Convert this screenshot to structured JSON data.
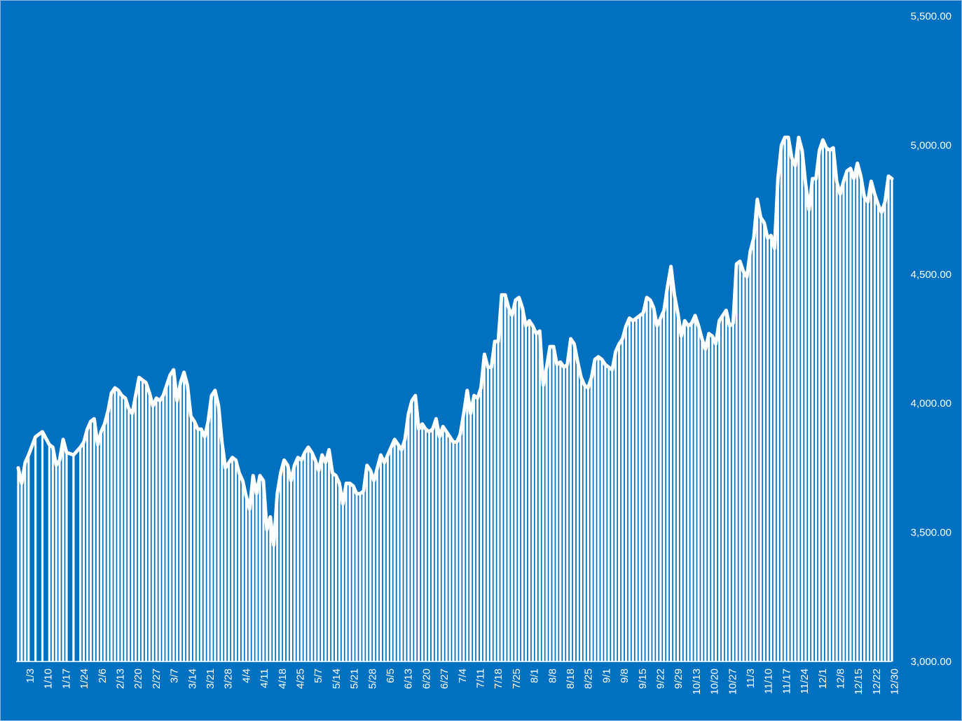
{
  "chart_data": {
    "type": "area",
    "title": "",
    "xlabel": "",
    "ylabel": "",
    "ylim": [
      3000,
      5500
    ],
    "y_ticks": [
      3000,
      3500,
      4000,
      4500,
      5000,
      5500
    ],
    "y_tick_labels": [
      "3,000.00",
      "3,500.00",
      "4,000.00",
      "4,500.00",
      "5,000.00",
      "5,500.00"
    ],
    "y_axis_side": "right",
    "grid": false,
    "legend": "none",
    "x_tick_labels": [
      "1/3",
      "1/10",
      "1/17",
      "1/24",
      "2/6",
      "2/13",
      "2/20",
      "2/27",
      "3/7",
      "3/14",
      "3/21",
      "3/28",
      "4/4",
      "4/11",
      "4/18",
      "4/25",
      "5/7",
      "5/14",
      "5/21",
      "5/28",
      "6/5",
      "6/13",
      "6/20",
      "6/27",
      "7/4",
      "7/11",
      "7/18",
      "7/25",
      "8/1",
      "8/8",
      "8/18",
      "8/25",
      "9/1",
      "9/8",
      "9/15",
      "9/22",
      "9/29",
      "10/13",
      "10/20",
      "10/27",
      "11/3",
      "11/10",
      "11/17",
      "11/24",
      "12/1",
      "12/8",
      "12/15",
      "12/22",
      "12/30"
    ],
    "anchors": [
      [
        0,
        3750
      ],
      [
        1,
        3690
      ],
      [
        2,
        3770
      ],
      [
        3,
        3800
      ],
      [
        5,
        3870
      ],
      [
        7,
        3890
      ],
      [
        9,
        3840
      ],
      [
        10,
        3830
      ],
      [
        11,
        3760
      ],
      [
        12,
        3780
      ],
      [
        13,
        3860
      ],
      [
        14,
        3810
      ],
      [
        16,
        3800
      ],
      [
        18,
        3830
      ],
      [
        19,
        3850
      ],
      [
        20,
        3900
      ],
      [
        21,
        3930
      ],
      [
        22,
        3940
      ],
      [
        23,
        3840
      ],
      [
        24,
        3890
      ],
      [
        25,
        3920
      ],
      [
        26,
        3970
      ],
      [
        27,
        4040
      ],
      [
        28,
        4060
      ],
      [
        29,
        4050
      ],
      [
        30,
        4030
      ],
      [
        31,
        4020
      ],
      [
        32,
        3980
      ],
      [
        33,
        3960
      ],
      [
        34,
        4030
      ],
      [
        35,
        4100
      ],
      [
        36,
        4090
      ],
      [
        37,
        4080
      ],
      [
        38,
        4040
      ],
      [
        39,
        3990
      ],
      [
        40,
        4020
      ],
      [
        41,
        4010
      ],
      [
        42,
        4030
      ],
      [
        43,
        4070
      ],
      [
        44,
        4110
      ],
      [
        45,
        4130
      ],
      [
        46,
        4010
      ],
      [
        47,
        4080
      ],
      [
        48,
        4120
      ],
      [
        49,
        4070
      ],
      [
        50,
        3950
      ],
      [
        51,
        3930
      ],
      [
        52,
        3900
      ],
      [
        53,
        3900
      ],
      [
        54,
        3870
      ],
      [
        55,
        3930
      ],
      [
        56,
        4030
      ],
      [
        57,
        4050
      ],
      [
        58,
        3990
      ],
      [
        59,
        3850
      ],
      [
        60,
        3750
      ],
      [
        61,
        3770
      ],
      [
        62,
        3790
      ],
      [
        63,
        3780
      ],
      [
        64,
        3730
      ],
      [
        65,
        3700
      ],
      [
        66,
        3640
      ],
      [
        67,
        3590
      ],
      [
        68,
        3720
      ],
      [
        69,
        3650
      ],
      [
        70,
        3720
      ],
      [
        71,
        3700
      ],
      [
        72,
        3510
      ],
      [
        73,
        3560
      ],
      [
        74,
        3450
      ],
      [
        75,
        3650
      ],
      [
        76,
        3730
      ],
      [
        77,
        3780
      ],
      [
        78,
        3760
      ],
      [
        79,
        3700
      ],
      [
        80,
        3760
      ],
      [
        81,
        3790
      ],
      [
        82,
        3780
      ],
      [
        83,
        3810
      ],
      [
        84,
        3830
      ],
      [
        85,
        3810
      ],
      [
        86,
        3780
      ],
      [
        87,
        3740
      ],
      [
        88,
        3800
      ],
      [
        89,
        3770
      ],
      [
        90,
        3820
      ],
      [
        91,
        3730
      ],
      [
        92,
        3720
      ],
      [
        93,
        3690
      ],
      [
        94,
        3610
      ],
      [
        95,
        3690
      ],
      [
        96,
        3690
      ],
      [
        97,
        3680
      ],
      [
        98,
        3650
      ],
      [
        99,
        3650
      ],
      [
        100,
        3660
      ],
      [
        101,
        3760
      ],
      [
        102,
        3740
      ],
      [
        103,
        3700
      ],
      [
        104,
        3750
      ],
      [
        105,
        3800
      ],
      [
        106,
        3770
      ],
      [
        107,
        3800
      ],
      [
        108,
        3830
      ],
      [
        109,
        3860
      ],
      [
        110,
        3840
      ],
      [
        111,
        3820
      ],
      [
        112,
        3860
      ],
      [
        113,
        3960
      ],
      [
        114,
        4010
      ],
      [
        115,
        4030
      ],
      [
        116,
        3900
      ],
      [
        117,
        3920
      ],
      [
        118,
        3900
      ],
      [
        119,
        3890
      ],
      [
        120,
        3900
      ],
      [
        121,
        3940
      ],
      [
        122,
        3870
      ],
      [
        123,
        3910
      ],
      [
        124,
        3890
      ],
      [
        125,
        3870
      ],
      [
        126,
        3850
      ],
      [
        127,
        3850
      ],
      [
        128,
        3880
      ],
      [
        129,
        3960
      ],
      [
        130,
        4050
      ],
      [
        131,
        3960
      ],
      [
        132,
        4030
      ],
      [
        133,
        4020
      ],
      [
        134,
        4060
      ],
      [
        135,
        4190
      ],
      [
        136,
        4140
      ],
      [
        137,
        4140
      ],
      [
        138,
        4240
      ],
      [
        139,
        4240
      ],
      [
        140,
        4420
      ],
      [
        141,
        4420
      ],
      [
        142,
        4370
      ],
      [
        143,
        4340
      ],
      [
        144,
        4400
      ],
      [
        145,
        4410
      ],
      [
        146,
        4370
      ],
      [
        147,
        4300
      ],
      [
        148,
        4320
      ],
      [
        149,
        4300
      ],
      [
        150,
        4270
      ],
      [
        151,
        4280
      ],
      [
        152,
        4070
      ],
      [
        153,
        4140
      ],
      [
        154,
        4220
      ],
      [
        155,
        4220
      ],
      [
        156,
        4150
      ],
      [
        157,
        4160
      ],
      [
        158,
        4140
      ],
      [
        159,
        4150
      ],
      [
        160,
        4250
      ],
      [
        161,
        4230
      ],
      [
        162,
        4160
      ],
      [
        163,
        4100
      ],
      [
        164,
        4070
      ],
      [
        165,
        4060
      ],
      [
        166,
        4100
      ],
      [
        167,
        4170
      ],
      [
        168,
        4180
      ],
      [
        169,
        4170
      ],
      [
        170,
        4150
      ],
      [
        171,
        4140
      ],
      [
        172,
        4130
      ],
      [
        173,
        4200
      ],
      [
        174,
        4230
      ],
      [
        175,
        4250
      ],
      [
        176,
        4300
      ],
      [
        177,
        4330
      ],
      [
        178,
        4320
      ],
      [
        179,
        4330
      ],
      [
        180,
        4340
      ],
      [
        181,
        4350
      ],
      [
        182,
        4410
      ],
      [
        183,
        4400
      ],
      [
        184,
        4370
      ],
      [
        185,
        4300
      ],
      [
        186,
        4330
      ],
      [
        187,
        4360
      ],
      [
        188,
        4450
      ],
      [
        189,
        4530
      ],
      [
        190,
        4420
      ],
      [
        191,
        4350
      ],
      [
        192,
        4260
      ],
      [
        193,
        4320
      ],
      [
        194,
        4300
      ],
      [
        195,
        4310
      ],
      [
        196,
        4340
      ],
      [
        197,
        4300
      ],
      [
        198,
        4250
      ],
      [
        199,
        4210
      ],
      [
        200,
        4270
      ],
      [
        201,
        4260
      ],
      [
        202,
        4230
      ],
      [
        203,
        4320
      ],
      [
        204,
        4340
      ],
      [
        205,
        4360
      ],
      [
        206,
        4300
      ],
      [
        207,
        4310
      ],
      [
        208,
        4540
      ],
      [
        209,
        4550
      ],
      [
        210,
        4510
      ],
      [
        211,
        4490
      ],
      [
        212,
        4590
      ],
      [
        213,
        4640
      ],
      [
        214,
        4790
      ],
      [
        215,
        4720
      ],
      [
        216,
        4700
      ],
      [
        217,
        4640
      ],
      [
        218,
        4650
      ],
      [
        219,
        4600
      ],
      [
        220,
        4870
      ],
      [
        221,
        5000
      ],
      [
        222,
        5030
      ],
      [
        223,
        5030
      ],
      [
        224,
        4950
      ],
      [
        225,
        4920
      ],
      [
        226,
        5030
      ],
      [
        227,
        4980
      ],
      [
        228,
        4850
      ],
      [
        229,
        4750
      ],
      [
        230,
        4870
      ],
      [
        231,
        4870
      ],
      [
        232,
        4980
      ],
      [
        233,
        5020
      ],
      [
        234,
        4990
      ],
      [
        235,
        4980
      ],
      [
        236,
        4990
      ],
      [
        237,
        4860
      ],
      [
        238,
        4810
      ],
      [
        239,
        4860
      ],
      [
        240,
        4900
      ],
      [
        241,
        4910
      ],
      [
        242,
        4870
      ],
      [
        243,
        4930
      ],
      [
        244,
        4880
      ],
      [
        245,
        4800
      ],
      [
        246,
        4780
      ],
      [
        247,
        4860
      ],
      [
        248,
        4810
      ],
      [
        249,
        4770
      ],
      [
        250,
        4740
      ],
      [
        251,
        4780
      ],
      [
        252,
        4880
      ],
      [
        253,
        4870
      ]
    ]
  }
}
